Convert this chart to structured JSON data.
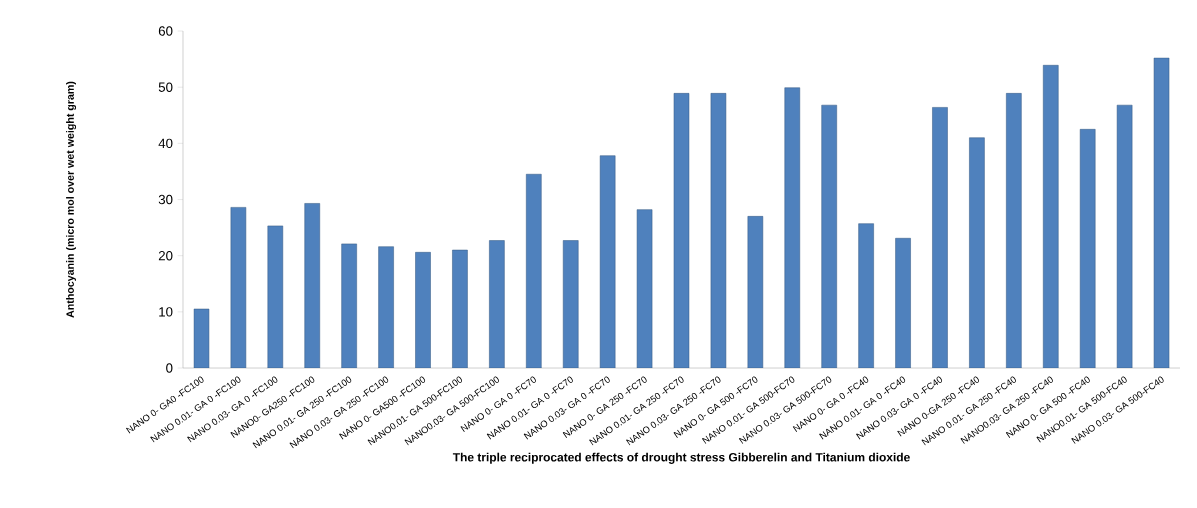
{
  "chart_data": {
    "type": "bar",
    "xlabel": "The triple reciprocated effects of drought stress Gibberelin and Titanium dioxide",
    "ylabel": "Anthocyanin (micro mol over wet weight gram)",
    "categories": [
      "NANO 0- GA0 -FC100",
      "NANO 0.01- GA 0 -FC100",
      "NANO 0.03- GA 0 -FC100",
      "NANO0- GA250 -FC100",
      "NANO 0.01- GA 250 -FC100",
      "NANO 0.03- GA 250 -FC100",
      "NANO 0- GA500 -FC100",
      "NANO0.01- GA 500-FC100",
      "NANO0.03- GA 500-FC100",
      "NANO 0- GA 0 -FC70",
      "NANO 0.01- GA 0 -FC70",
      "NANO 0.03- GA 0 -FC70",
      "NANO 0- GA 250 -FC70",
      "NANO 0.01- GA 250 -FC70",
      "NANO 0.03- GA 250 -FC70",
      "NANO 0- GA 500 -FC70",
      "NANO 0.01- GA 500-FC70",
      "NANO 0.03- GA 500-FC70",
      "NANO 0- GA 0 -FC40",
      "NANO 0.01- GA 0 -FC40",
      "NANO 0.03- GA 0 -FC40",
      "NANO 0-GA 250 -FC40",
      "NANO 0.01- GA 250 -FC40",
      "NANO0.03- GA 250 -FC40",
      "NANO 0- GA 500 -FC40",
      "NANO0.01- GA 500-FC40",
      "NANO 0.03- GA 500-FC40"
    ],
    "values": [
      10.5,
      28.6,
      25.3,
      29.3,
      22.1,
      21.6,
      20.6,
      21.0,
      22.7,
      34.5,
      22.7,
      37.8,
      28.2,
      48.9,
      48.9,
      27.0,
      49.9,
      46.8,
      25.7,
      23.1,
      46.4,
      41.0,
      48.9,
      53.9,
      42.5,
      46.8,
      55.2
    ],
    "color": "#4f81bd",
    "ylim": [
      0,
      60
    ],
    "yticks": [
      0,
      10,
      20,
      30,
      40,
      50,
      60
    ],
    "grid": false
  }
}
